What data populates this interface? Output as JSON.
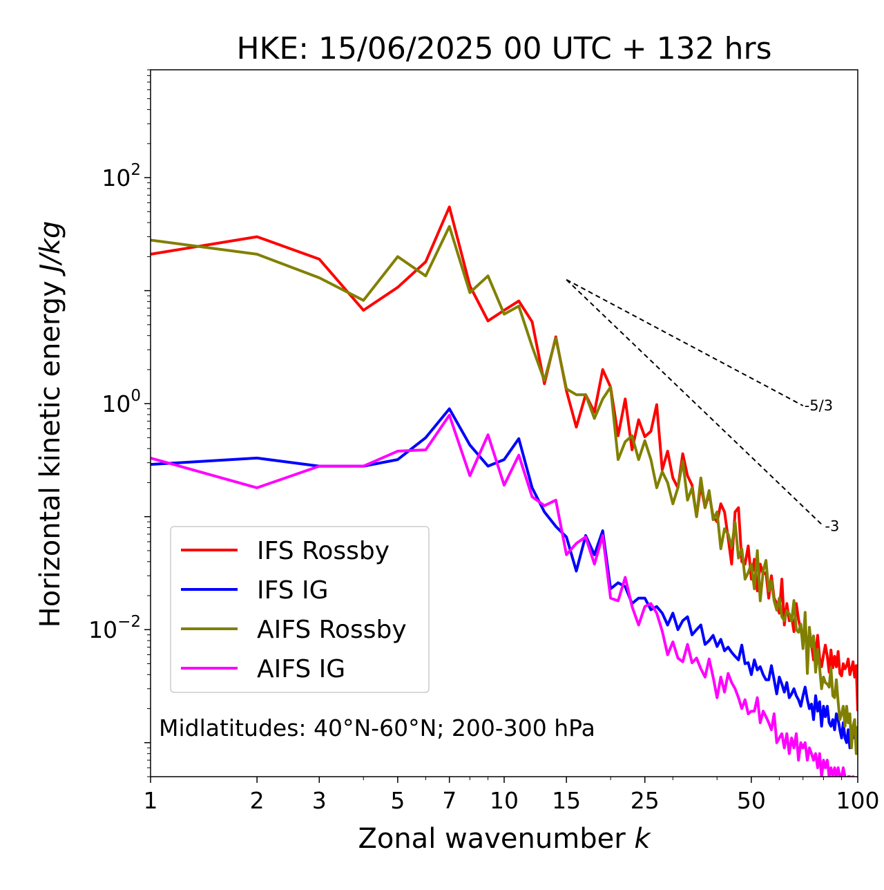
{
  "chart_data": {
    "type": "line",
    "title": "HKE: 15/06/2025 00 UTC + 132 hrs",
    "xlabel": "Zonal wavenumber",
    "xlabel_var": "k",
    "ylabel": "Horizontal kinetic energy",
    "ylabel_unit": "J/kg",
    "xscale": "log",
    "yscale": "log",
    "xlim": [
      1,
      100
    ],
    "ylim": [
      0.0005,
      900
    ],
    "grid": false,
    "legend_position": "lower-left",
    "x_ticks": [
      1,
      2,
      3,
      5,
      7,
      10,
      15,
      25,
      50,
      100
    ],
    "x_tick_labels": [
      "1",
      "2",
      "3",
      "5",
      "7",
      "10",
      "15",
      "25",
      "50",
      "100"
    ],
    "y_ticks": [
      {
        "value": 100,
        "base": "10",
        "exp": "2"
      },
      {
        "value": 1,
        "base": "10",
        "exp": "0"
      },
      {
        "value": 0.01,
        "base": "10",
        "exp": "−2"
      }
    ],
    "annotation": "Midlatitudes: 40°N-60°N; 200-300 hPa",
    "reference_slopes": [
      {
        "label": "-5/3",
        "slope": -1.6667,
        "x0": 15,
        "y0": 12.5,
        "x1": 70
      },
      {
        "label": "-3",
        "slope": -3,
        "x0": 15,
        "y0": 12.5,
        "x1": 80
      }
    ],
    "series": [
      {
        "name": "IFS Rossby",
        "color": "#ff0000",
        "x": [
          1,
          2,
          3,
          4,
          5,
          6,
          7,
          8,
          9,
          10,
          11,
          12,
          13,
          14,
          15,
          16,
          17,
          18,
          19,
          20,
          21,
          22,
          23,
          24,
          25,
          26,
          27,
          28,
          29,
          30,
          31,
          32,
          33,
          34,
          35,
          36,
          37,
          38,
          39,
          40,
          41,
          42,
          43,
          44,
          45,
          46,
          47,
          48,
          49,
          50,
          51,
          52,
          53,
          54,
          55,
          56,
          57,
          58,
          59,
          60,
          61,
          62,
          63,
          64,
          65,
          66,
          67,
          68,
          69,
          70,
          71,
          72,
          73,
          74,
          75,
          76,
          77,
          78,
          79,
          80,
          81,
          82,
          83,
          84,
          85,
          86,
          87,
          88,
          89,
          90,
          91,
          92,
          93,
          94,
          95,
          96,
          97,
          98,
          99,
          100
        ],
        "values": [
          21,
          30,
          19,
          6.7,
          10.7,
          18,
          55,
          11,
          5.4,
          6.7,
          8.1,
          5.3,
          1.5,
          3.9,
          1.3,
          0.62,
          1.2,
          0.84,
          2.0,
          1.4,
          0.52,
          1.1,
          0.39,
          0.72,
          0.51,
          0.57,
          0.98,
          0.26,
          0.38,
          0.22,
          0.18,
          0.36,
          0.23,
          0.19,
          0.1,
          0.19,
          0.12,
          0.16,
          0.1,
          0.09,
          0.13,
          0.11,
          0.065,
          0.038,
          0.11,
          0.12,
          0.04,
          0.038,
          0.055,
          0.028,
          0.042,
          0.022,
          0.038,
          0.031,
          0.032,
          0.019,
          0.03,
          0.019,
          0.017,
          0.014,
          0.028,
          0.011,
          0.017,
          0.012,
          0.013,
          0.0096,
          0.017,
          0.0123,
          0.01,
          0.0079,
          0.011,
          0.0067,
          0.0082,
          0.0074,
          0.0054,
          0.0063,
          0.0089,
          0.0056,
          0.0047,
          0.006,
          0.0073,
          0.0058,
          0.0042,
          0.0066,
          0.0046,
          0.0058,
          0.0047,
          0.0064,
          0.0041,
          0.0039,
          0.005,
          0.0045,
          0.0048,
          0.0055,
          0.004,
          0.0045,
          0.0052,
          0.0038,
          0.0048,
          0.0019
        ]
      },
      {
        "name": "IFS IG",
        "color": "#0000ff",
        "x": [
          1,
          2,
          3,
          4,
          5,
          6,
          7,
          8,
          9,
          10,
          11,
          12,
          13,
          14,
          15,
          16,
          17,
          18,
          19,
          20,
          21,
          22,
          23,
          24,
          25,
          26,
          27,
          28,
          29,
          30,
          31,
          32,
          33,
          34,
          35,
          36,
          37,
          38,
          39,
          40,
          41,
          42,
          43,
          44,
          45,
          46,
          47,
          48,
          49,
          50,
          51,
          52,
          53,
          54,
          55,
          56,
          57,
          58,
          59,
          60,
          61,
          62,
          63,
          64,
          65,
          66,
          67,
          68,
          69,
          70,
          71,
          72,
          73,
          74,
          75,
          76,
          77,
          78,
          79,
          80,
          81,
          82,
          83,
          84,
          85,
          86,
          87,
          88,
          89,
          90,
          91,
          92,
          93,
          94,
          95,
          96,
          97,
          98,
          99,
          100
        ],
        "values": [
          0.29,
          0.33,
          0.28,
          0.28,
          0.32,
          0.5,
          0.9,
          0.43,
          0.28,
          0.32,
          0.49,
          0.18,
          0.11,
          0.082,
          0.066,
          0.033,
          0.068,
          0.046,
          0.075,
          0.023,
          0.026,
          0.024,
          0.017,
          0.019,
          0.019,
          0.015,
          0.016,
          0.014,
          0.011,
          0.014,
          0.01,
          0.012,
          0.013,
          0.009,
          0.01,
          0.011,
          0.0074,
          0.008,
          0.0089,
          0.0071,
          0.0082,
          0.0065,
          0.007,
          0.0063,
          0.0058,
          0.0054,
          0.0073,
          0.005,
          0.0051,
          0.004,
          0.0054,
          0.0044,
          0.0047,
          0.004,
          0.0036,
          0.0036,
          0.0048,
          0.0036,
          0.0027,
          0.0038,
          0.0033,
          0.0028,
          0.0034,
          0.0025,
          0.0027,
          0.003,
          0.0026,
          0.0024,
          0.0021,
          0.0026,
          0.0031,
          0.0024,
          0.002,
          0.0022,
          0.0016,
          0.0026,
          0.0019,
          0.0023,
          0.0014,
          0.0021,
          0.0017,
          0.0021,
          0.0015,
          0.0014,
          0.0016,
          0.0013,
          0.0018,
          0.0016,
          0.0013,
          0.0011,
          0.0015,
          0.0011,
          0.001,
          0.0013,
          0.0009,
          0.0011,
          0.0011,
          0.0013,
          0.001,
          0.0012
        ]
      },
      {
        "name": "AIFS Rossby",
        "color": "#808000",
        "x": [
          1,
          2,
          3,
          4,
          5,
          6,
          7,
          8,
          9,
          10,
          11,
          12,
          13,
          14,
          15,
          16,
          17,
          18,
          19,
          20,
          21,
          22,
          23,
          24,
          25,
          26,
          27,
          28,
          29,
          30,
          31,
          32,
          33,
          34,
          35,
          36,
          37,
          38,
          39,
          40,
          41,
          42,
          43,
          44,
          45,
          46,
          47,
          48,
          49,
          50,
          51,
          52,
          53,
          54,
          55,
          56,
          57,
          58,
          59,
          60,
          61,
          62,
          63,
          64,
          65,
          66,
          67,
          68,
          69,
          70,
          71,
          72,
          73,
          74,
          75,
          76,
          77,
          78,
          79,
          80,
          81,
          82,
          83,
          84,
          85,
          86,
          87,
          88,
          89,
          90,
          91,
          92,
          93,
          94,
          95,
          96,
          97,
          98,
          99,
          100
        ],
        "values": [
          28,
          21,
          13,
          8.2,
          20,
          13.5,
          37,
          9.6,
          13.5,
          6.2,
          7.3,
          3.2,
          1.6,
          3.8,
          1.35,
          1.2,
          1.2,
          0.74,
          1.1,
          1.4,
          0.32,
          0.46,
          0.52,
          0.32,
          0.47,
          0.32,
          0.18,
          0.25,
          0.2,
          0.13,
          0.18,
          0.31,
          0.14,
          0.18,
          0.1,
          0.22,
          0.12,
          0.17,
          0.094,
          0.11,
          0.052,
          0.078,
          0.07,
          0.054,
          0.089,
          0.043,
          0.052,
          0.028,
          0.032,
          0.038,
          0.023,
          0.05,
          0.018,
          0.033,
          0.041,
          0.022,
          0.027,
          0.018,
          0.0149,
          0.019,
          0.013,
          0.012,
          0.0147,
          0.0138,
          0.0119,
          0.0181,
          0.01,
          0.0095,
          0.0112,
          0.0068,
          0.0142,
          0.0041,
          0.0105,
          0.007,
          0.0088,
          0.0042,
          0.0067,
          0.0046,
          0.003,
          0.0038,
          0.0034,
          0.0033,
          0.0031,
          0.0046,
          0.0026,
          0.0025,
          0.0036,
          0.0023,
          0.0016,
          0.0018,
          0.0021,
          0.0014,
          0.0021,
          0.0015,
          0.0018,
          0.0009,
          0.0014,
          0.0016,
          0.0008,
          0.0014
        ]
      },
      {
        "name": "AIFS IG",
        "color": "#ff00ff",
        "x": [
          1,
          2,
          3,
          4,
          5,
          6,
          7,
          8,
          9,
          10,
          11,
          12,
          13,
          14,
          15,
          16,
          17,
          18,
          19,
          20,
          21,
          22,
          23,
          24,
          25,
          26,
          27,
          28,
          29,
          30,
          31,
          32,
          33,
          34,
          35,
          36,
          37,
          38,
          39,
          40,
          41,
          42,
          43,
          44,
          45,
          46,
          47,
          48,
          49,
          50,
          51,
          52,
          53,
          54,
          55,
          56,
          57,
          58,
          59,
          60,
          61,
          62,
          63,
          64,
          65,
          66,
          67,
          68,
          69,
          70,
          71,
          72,
          73,
          74,
          75,
          76,
          77,
          78,
          79,
          80,
          81,
          82,
          83,
          84,
          85,
          86,
          87,
          88,
          89,
          90,
          91,
          92,
          93,
          94,
          95,
          96,
          97,
          98,
          99,
          100
        ],
        "values": [
          0.33,
          0.18,
          0.28,
          0.28,
          0.38,
          0.39,
          0.79,
          0.23,
          0.53,
          0.19,
          0.35,
          0.15,
          0.125,
          0.14,
          0.046,
          0.058,
          0.066,
          0.038,
          0.068,
          0.019,
          0.018,
          0.029,
          0.016,
          0.011,
          0.016,
          0.017,
          0.014,
          0.0097,
          0.006,
          0.0078,
          0.0056,
          0.0052,
          0.0074,
          0.0051,
          0.0056,
          0.0045,
          0.0038,
          0.0055,
          0.0038,
          0.0025,
          0.0038,
          0.0028,
          0.0041,
          0.0034,
          0.003,
          0.0025,
          0.002,
          0.0024,
          0.0018,
          0.0019,
          0.0019,
          0.0025,
          0.0015,
          0.0019,
          0.0017,
          0.0015,
          0.0013,
          0.0018,
          0.001,
          0.0011,
          0.0012,
          0.0009,
          0.0012,
          0.0008,
          0.0011,
          0.0009,
          0.0012,
          0.0007,
          0.001,
          0.0009,
          0.001,
          0.0007,
          0.0009,
          0.0008,
          0.0007,
          0.0008,
          0.0006,
          0.0008,
          0.0005,
          0.0007,
          0.0006,
          0.0007,
          0.0005,
          0.0006,
          0.0005,
          0.0006,
          0.0005,
          0.0006,
          0.0005,
          0.0005,
          0.0006,
          0.0005,
          0.0004,
          0.0005,
          0.0005,
          0.0004,
          0.0005,
          0.0004,
          0.0004,
          0.0004
        ]
      }
    ]
  }
}
